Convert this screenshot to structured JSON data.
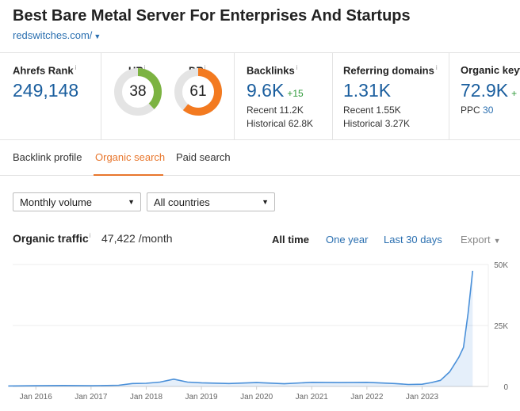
{
  "header": {
    "title": "Best Bare Metal Server For Enterprises And Startups",
    "url": "redswitches.com/"
  },
  "metrics": {
    "ahrefs_rank": {
      "label": "Ahrefs Rank",
      "info": "i",
      "value": "249,148"
    },
    "ur": {
      "label": "UR",
      "info": "i",
      "value": "38",
      "score": 38,
      "color": "#7cb342"
    },
    "dr": {
      "label": "DR",
      "info": "i",
      "value": "61",
      "score": 61,
      "color": "#f37a20"
    },
    "backlinks": {
      "label": "Backlinks",
      "info": "i",
      "value": "9.6K",
      "delta": "+15",
      "recent_label": "Recent",
      "recent": "11.2K",
      "historical_label": "Historical",
      "historical": "62.8K"
    },
    "referring_domains": {
      "label": "Referring domains",
      "info": "i",
      "value": "1.31K",
      "recent_label": "Recent",
      "recent": "1.55K",
      "historical_label": "Historical",
      "historical": "3.27K"
    },
    "organic_keywords": {
      "label": "Organic keyw",
      "value": "72.9K",
      "delta": "+",
      "ppc_label": "PPC",
      "ppc": "30"
    }
  },
  "tabs": [
    {
      "label": "Backlink profile",
      "active": false
    },
    {
      "label": "Organic search",
      "active": true
    },
    {
      "label": "Paid search",
      "active": false
    }
  ],
  "filters": {
    "volume": {
      "value": "Monthly volume"
    },
    "country": {
      "value": "All countries"
    }
  },
  "organic_traffic": {
    "title": "Organic traffic",
    "info": "i",
    "value": "47,422 /month",
    "ranges": [
      "All time",
      "One year",
      "Last 30 days"
    ],
    "active_range": "All time",
    "export_label": "Export"
  },
  "chart_data": {
    "type": "area",
    "title": "",
    "xlabel": "",
    "ylabel": "",
    "ylim": [
      0,
      50000
    ],
    "y_ticks": [
      "50K",
      "25K",
      "0"
    ],
    "x_ticks": [
      "Jan 2016",
      "Jan 2017",
      "Jan 2018",
      "Jan 2019",
      "Jan 2020",
      "Jan 2021",
      "Jan 2022",
      "Jan 2023"
    ],
    "color": "#4a90d9",
    "grid": true,
    "series": [
      {
        "x": [
          "2015-07",
          "2016-01",
          "2016-07",
          "2017-01",
          "2017-07",
          "2017-10",
          "2018-01",
          "2018-04",
          "2018-07",
          "2018-10",
          "2019-01",
          "2019-07",
          "2020-01",
          "2020-07",
          "2021-01",
          "2021-07",
          "2022-01",
          "2022-07",
          "2022-10",
          "2023-01",
          "2023-03",
          "2023-05",
          "2023-07",
          "2023-08",
          "2023-09",
          "2023-10",
          "2023-11",
          "2023-12"
        ],
        "y": [
          200,
          300,
          400,
          300,
          500,
          1200,
          1300,
          1800,
          3000,
          1800,
          1500,
          1200,
          1600,
          1100,
          1700,
          1600,
          1700,
          1200,
          800,
          900,
          1600,
          2500,
          6000,
          9000,
          12000,
          16000,
          30000,
          47422
        ]
      }
    ]
  }
}
